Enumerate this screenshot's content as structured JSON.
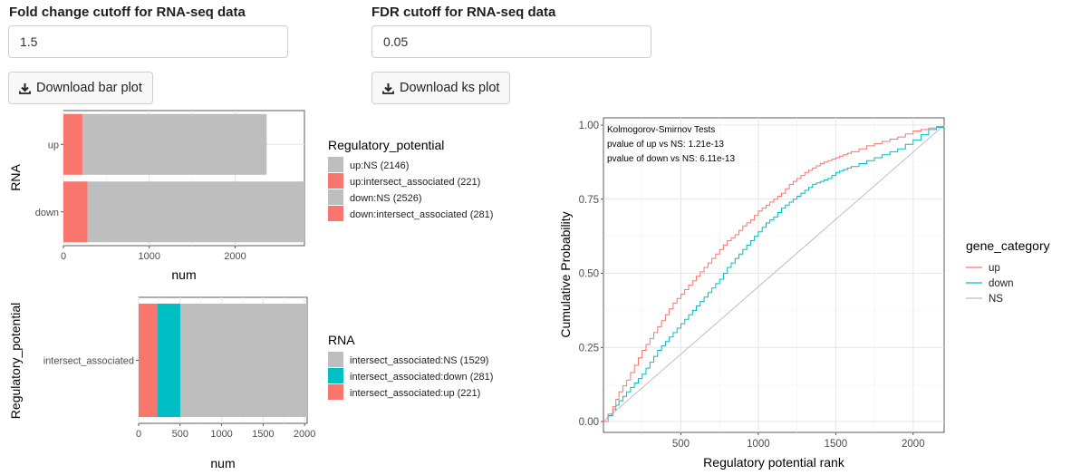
{
  "inputs": {
    "fold_change": {
      "label": "Fold change cutoff for RNA-seq data",
      "value": "1.5"
    },
    "fdr": {
      "label": "FDR cutoff for RNA-seq data",
      "value": "0.05"
    }
  },
  "buttons": {
    "download_bar": "Download bar plot",
    "download_ks": "Download ks plot"
  },
  "colors": {
    "red": "#F8766D",
    "cyan": "#00BFC4",
    "grey": "#BEBEBE"
  },
  "chart_data": [
    {
      "type": "bar",
      "orientation": "horizontal",
      "stacked": true,
      "categories": [
        "up",
        "down"
      ],
      "series": [
        {
          "name": "intersect_associated",
          "values": [
            221,
            281
          ]
        },
        {
          "name": "NS",
          "values": [
            2146,
            2526
          ]
        }
      ],
      "xlabel": "num",
      "ylabel": "RNA",
      "xticks": [
        0,
        1000,
        2000
      ],
      "xlim": [
        0,
        2807
      ],
      "legend": {
        "title": "Regulatory_potential",
        "placement": "right",
        "entries": [
          {
            "label": "up:NS (2146)",
            "color": "#BEBEBE"
          },
          {
            "label": "up:intersect_associated (221)",
            "color": "#F8766D"
          },
          {
            "label": "down:NS (2526)",
            "color": "#BEBEBE"
          },
          {
            "label": "down:intersect_associated (281)",
            "color": "#F8766D"
          }
        ]
      }
    },
    {
      "type": "bar",
      "orientation": "horizontal",
      "stacked": true,
      "categories": [
        "intersect_associated"
      ],
      "series": [
        {
          "name": "up",
          "values": [
            221
          ]
        },
        {
          "name": "down",
          "values": [
            281
          ]
        },
        {
          "name": "NS",
          "values": [
            1529
          ]
        }
      ],
      "xlabel": "num",
      "ylabel": "Regulatory_potential",
      "xticks": [
        0,
        500,
        1000,
        1500,
        2000
      ],
      "xlim": [
        0,
        2031
      ],
      "legend": {
        "title": "RNA",
        "placement": "right",
        "entries": [
          {
            "label": "intersect_associated:NS (1529)",
            "color": "#BEBEBE"
          },
          {
            "label": "intersect_associated:down (281)",
            "color": "#00BFC4"
          },
          {
            "label": "intersect_associated:up (221)",
            "color": "#F8766D"
          }
        ]
      }
    },
    {
      "type": "line",
      "xlabel": "Regulatory potential rank",
      "ylabel": "Cumulative Probability",
      "xlim": [
        0,
        2200
      ],
      "ylim": [
        0,
        1
      ],
      "xticks": [
        500,
        1000,
        1500,
        2000
      ],
      "yticks": [
        "0.00",
        "0.25",
        "0.50",
        "0.75",
        "1.00"
      ],
      "annotations": [
        "Kolmogorov-Smirnov Tests",
        "pvalue of up vs NS: 1.21e-13",
        "pvalue of down vs NS: 6.11e-13"
      ],
      "legend": {
        "title": "gene_category",
        "placement": "right"
      },
      "series": [
        {
          "name": "up",
          "color": "#F8766D",
          "x": [
            0,
            60,
            100,
            150,
            200,
            250,
            300,
            350,
            400,
            450,
            500,
            550,
            600,
            650,
            700,
            750,
            800,
            850,
            900,
            950,
            1000,
            1050,
            1100,
            1150,
            1200,
            1250,
            1300,
            1350,
            1400,
            1450,
            1500,
            1550,
            1600,
            1700,
            1800,
            1900,
            2000,
            2100,
            2200
          ],
          "y": [
            0.0,
            0.05,
            0.1,
            0.14,
            0.19,
            0.24,
            0.28,
            0.32,
            0.36,
            0.4,
            0.43,
            0.46,
            0.49,
            0.52,
            0.55,
            0.58,
            0.61,
            0.63,
            0.66,
            0.68,
            0.71,
            0.73,
            0.75,
            0.77,
            0.8,
            0.82,
            0.84,
            0.855,
            0.87,
            0.88,
            0.89,
            0.9,
            0.91,
            0.93,
            0.945,
            0.96,
            0.98,
            0.99,
            1.0
          ]
        },
        {
          "name": "down",
          "color": "#00BFC4",
          "x": [
            0,
            60,
            100,
            150,
            200,
            250,
            300,
            350,
            400,
            450,
            500,
            550,
            600,
            650,
            700,
            750,
            800,
            850,
            900,
            950,
            1000,
            1050,
            1100,
            1150,
            1200,
            1250,
            1300,
            1350,
            1400,
            1450,
            1500,
            1550,
            1600,
            1700,
            1800,
            1900,
            2000,
            2100,
            2200
          ],
          "y": [
            0.0,
            0.04,
            0.07,
            0.1,
            0.13,
            0.16,
            0.2,
            0.24,
            0.27,
            0.3,
            0.33,
            0.36,
            0.39,
            0.42,
            0.45,
            0.48,
            0.52,
            0.55,
            0.58,
            0.61,
            0.64,
            0.67,
            0.69,
            0.72,
            0.74,
            0.76,
            0.78,
            0.8,
            0.81,
            0.82,
            0.84,
            0.85,
            0.86,
            0.88,
            0.9,
            0.92,
            0.95,
            0.985,
            1.0
          ]
        },
        {
          "name": "NS",
          "color": "#BEBEBE",
          "x": [
            0,
            2200
          ],
          "y": [
            0.0,
            1.0
          ]
        }
      ]
    }
  ]
}
